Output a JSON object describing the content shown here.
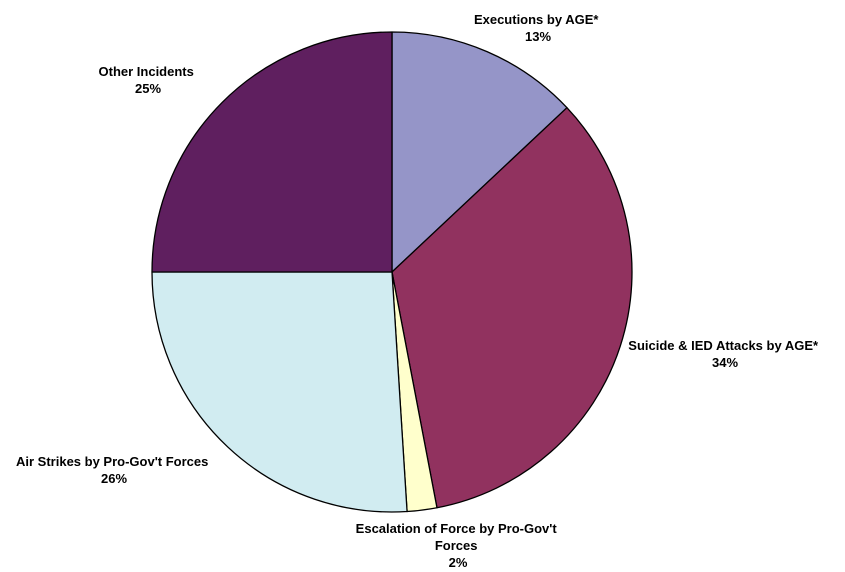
{
  "chart_data": {
    "type": "pie",
    "title": "",
    "slices": [
      {
        "label": "Executions by AGE*",
        "value": 13,
        "value_label": "13%",
        "color": "#9595c8"
      },
      {
        "label": "Suicide & IED Attacks by AGE*",
        "value": 34,
        "value_label": "34%",
        "color": "#91325f"
      },
      {
        "label": "Escalation of Force by Pro-Gov't Forces",
        "value": 2,
        "value_label": "2%",
        "color": "#ffffcc"
      },
      {
        "label": "Air Strikes by Pro-Gov't Forces",
        "value": 26,
        "value_label": "26%",
        "color": "#d1ecf1"
      },
      {
        "label": "Other Incidents",
        "value": 25,
        "value_label": "25%",
        "color": "#5f1f5f"
      }
    ],
    "start_angle": "12 o'clock",
    "direction": "clockwise",
    "legend": "none"
  }
}
